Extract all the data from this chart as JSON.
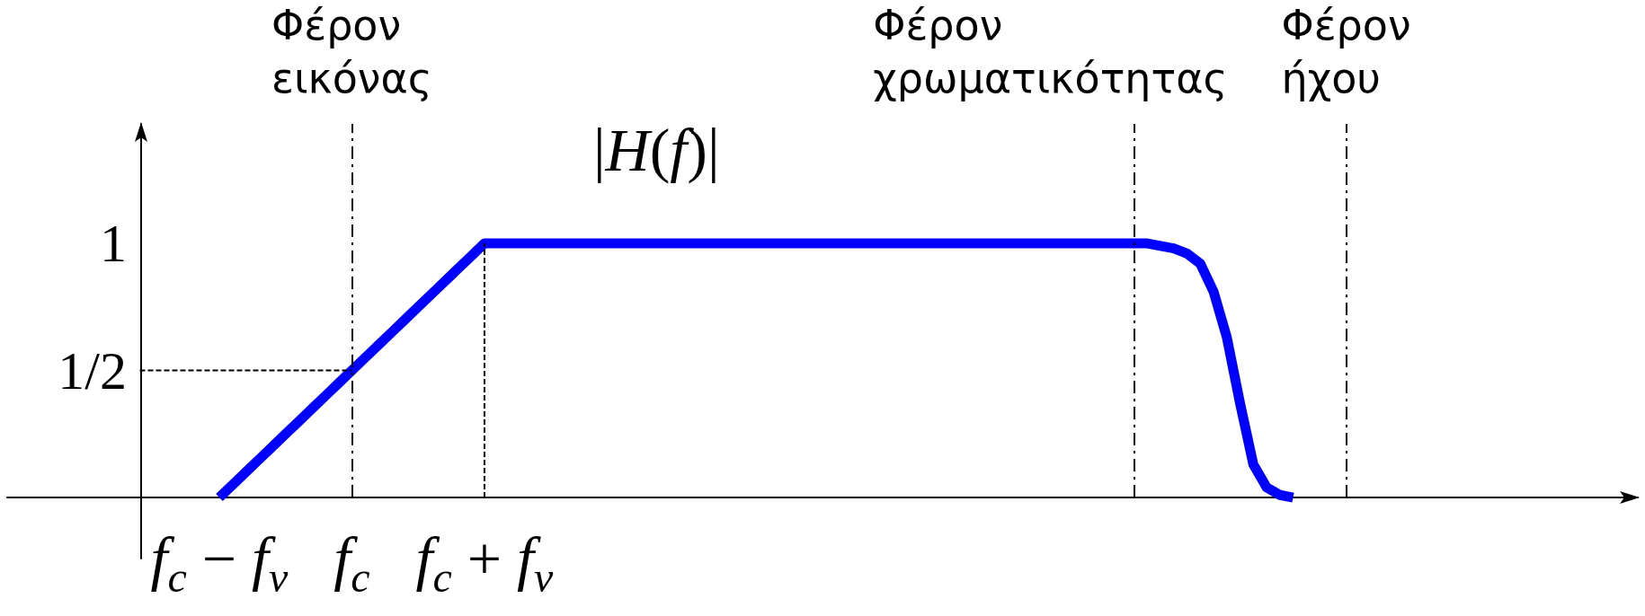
{
  "chart_data": {
    "type": "line",
    "title": "|H(f)|",
    "categories": [
      null,
      null,
      null,
      null,
      null,
      null,
      null,
      null,
      null,
      null,
      null,
      null,
      null,
      null,
      null,
      null,
      "f$_{c}$ − f$_{v}$",
      null,
      null,
      null,
      null,
      null,
      null,
      null,
      null,
      null,
      "f$_{c}$",
      null,
      null,
      null,
      null,
      null,
      null,
      null,
      null,
      null,
      "f$_{c}$ + f$_{v}$",
      null,
      null,
      null,
      null,
      null,
      null,
      null,
      null,
      null,
      null,
      null,
      null,
      null,
      null,
      null,
      null,
      null,
      null,
      null,
      null,
      null,
      null,
      null,
      null,
      null,
      null,
      null,
      null,
      null,
      null,
      null,
      null,
      null,
      null,
      null,
      null,
      null,
      null,
      null,
      null,
      null,
      null,
      null,
      null,
      null,
      null,
      null,
      null,
      null,
      null,
      null,
      null,
      null,
      null,
      null,
      null,
      null,
      null,
      null,
      null,
      null,
      null,
      null,
      null,
      null,
      null,
      null,
      null,
      null,
      null,
      null,
      null,
      null,
      null,
      null,
      null,
      null,
      null,
      null,
      null,
      null,
      null,
      null,
      null,
      null,
      null,
      null
    ],
    "series": [
      {
        "color": "#0000ff",
        "line_style": "solid",
        "values": [
          null,
          null,
          null,
          null,
          null,
          null,
          null,
          null,
          null,
          null,
          null,
          null,
          null,
          null,
          null,
          null,
          0,
          0.05,
          0.1,
          0.15,
          0.2,
          0.25,
          0.3,
          0.35,
          0.4,
          0.45,
          0.5,
          0.55,
          0.6,
          0.65,
          0.7,
          0.75,
          0.8,
          0.85,
          0.9,
          0.95,
          1,
          1,
          1,
          1,
          1,
          1,
          1,
          1,
          1,
          1,
          1,
          1,
          1,
          1,
          1,
          1,
          1,
          1,
          1,
          1,
          1,
          1,
          1,
          1,
          1,
          1,
          1,
          1,
          1,
          1,
          1,
          1,
          1,
          1,
          1,
          1,
          1,
          1,
          1,
          1,
          1,
          1,
          1,
          1,
          1,
          1,
          1,
          1,
          1,
          1,
          1,
          0.99,
          0.98,
          0.96,
          0.92,
          0.81,
          0.63,
          0.37,
          0.13,
          0.04,
          0.01,
          0,
          null,
          null,
          null,
          null,
          null,
          null,
          null,
          null,
          null,
          null,
          null,
          null,
          null,
          null,
          null,
          null,
          null,
          null,
          null,
          null,
          null,
          null,
          null,
          null,
          null,
          null
        ]
      },
      {
        "color": "#000000",
        "line_style": "dashed",
        "values": [
          null,
          null,
          null,
          null,
          null,
          null,
          null,
          null,
          null,
          null,
          0.5,
          0.5,
          0.5,
          0.5,
          0.5,
          0.5,
          0.5,
          0.5,
          0.5,
          0.5,
          0.5,
          0.5,
          0.5,
          0.5,
          0.5,
          0.5,
          0.5,
          null,
          null,
          null,
          null,
          null,
          null,
          null,
          null,
          null,
          null,
          null,
          null,
          null,
          null,
          null,
          null,
          null,
          null,
          null,
          null,
          null,
          null,
          null,
          null,
          null,
          null,
          null,
          null,
          null,
          null,
          null,
          null,
          null,
          null,
          null,
          null,
          null,
          null,
          null,
          null,
          null,
          null,
          null,
          null,
          null,
          null,
          null,
          null,
          null,
          null,
          null,
          null,
          null,
          null,
          null,
          null,
          null,
          null,
          null,
          null,
          null,
          null,
          null,
          null,
          null,
          null,
          null,
          null,
          null,
          null,
          null,
          null,
          null,
          null,
          null,
          null,
          null,
          null,
          null,
          null,
          null,
          null,
          null,
          null,
          null,
          null,
          null,
          null,
          null,
          null,
          null,
          null,
          null,
          null,
          null,
          null,
          null
        ]
      },
      {
        "color": "#000000",
        "line_style": "dashed",
        "x": [
          "f$_{c}$ + f$_{v}$",
          "f$_{c}$ + f$_{v}$"
        ],
        "values": [
          0,
          1
        ]
      }
    ],
    "ylim": [
      -0.24,
      1.47
    ],
    "yticks": [
      {
        "value": 0.5,
        "label": "1/2"
      },
      {
        "value": 1,
        "label": "1"
      }
    ],
    "ref_lines": [
      {
        "axis": "x",
        "value": "f$_{c}$",
        "label": "Φέρον εικόνας",
        "color": "#000000",
        "line_style": "dashed"
      }
    ],
    "annotations": [
      "Φέρον χρωματικότητας",
      "Φέρον ήχου"
    ],
    "grid": false,
    "marker": "none"
  }
}
